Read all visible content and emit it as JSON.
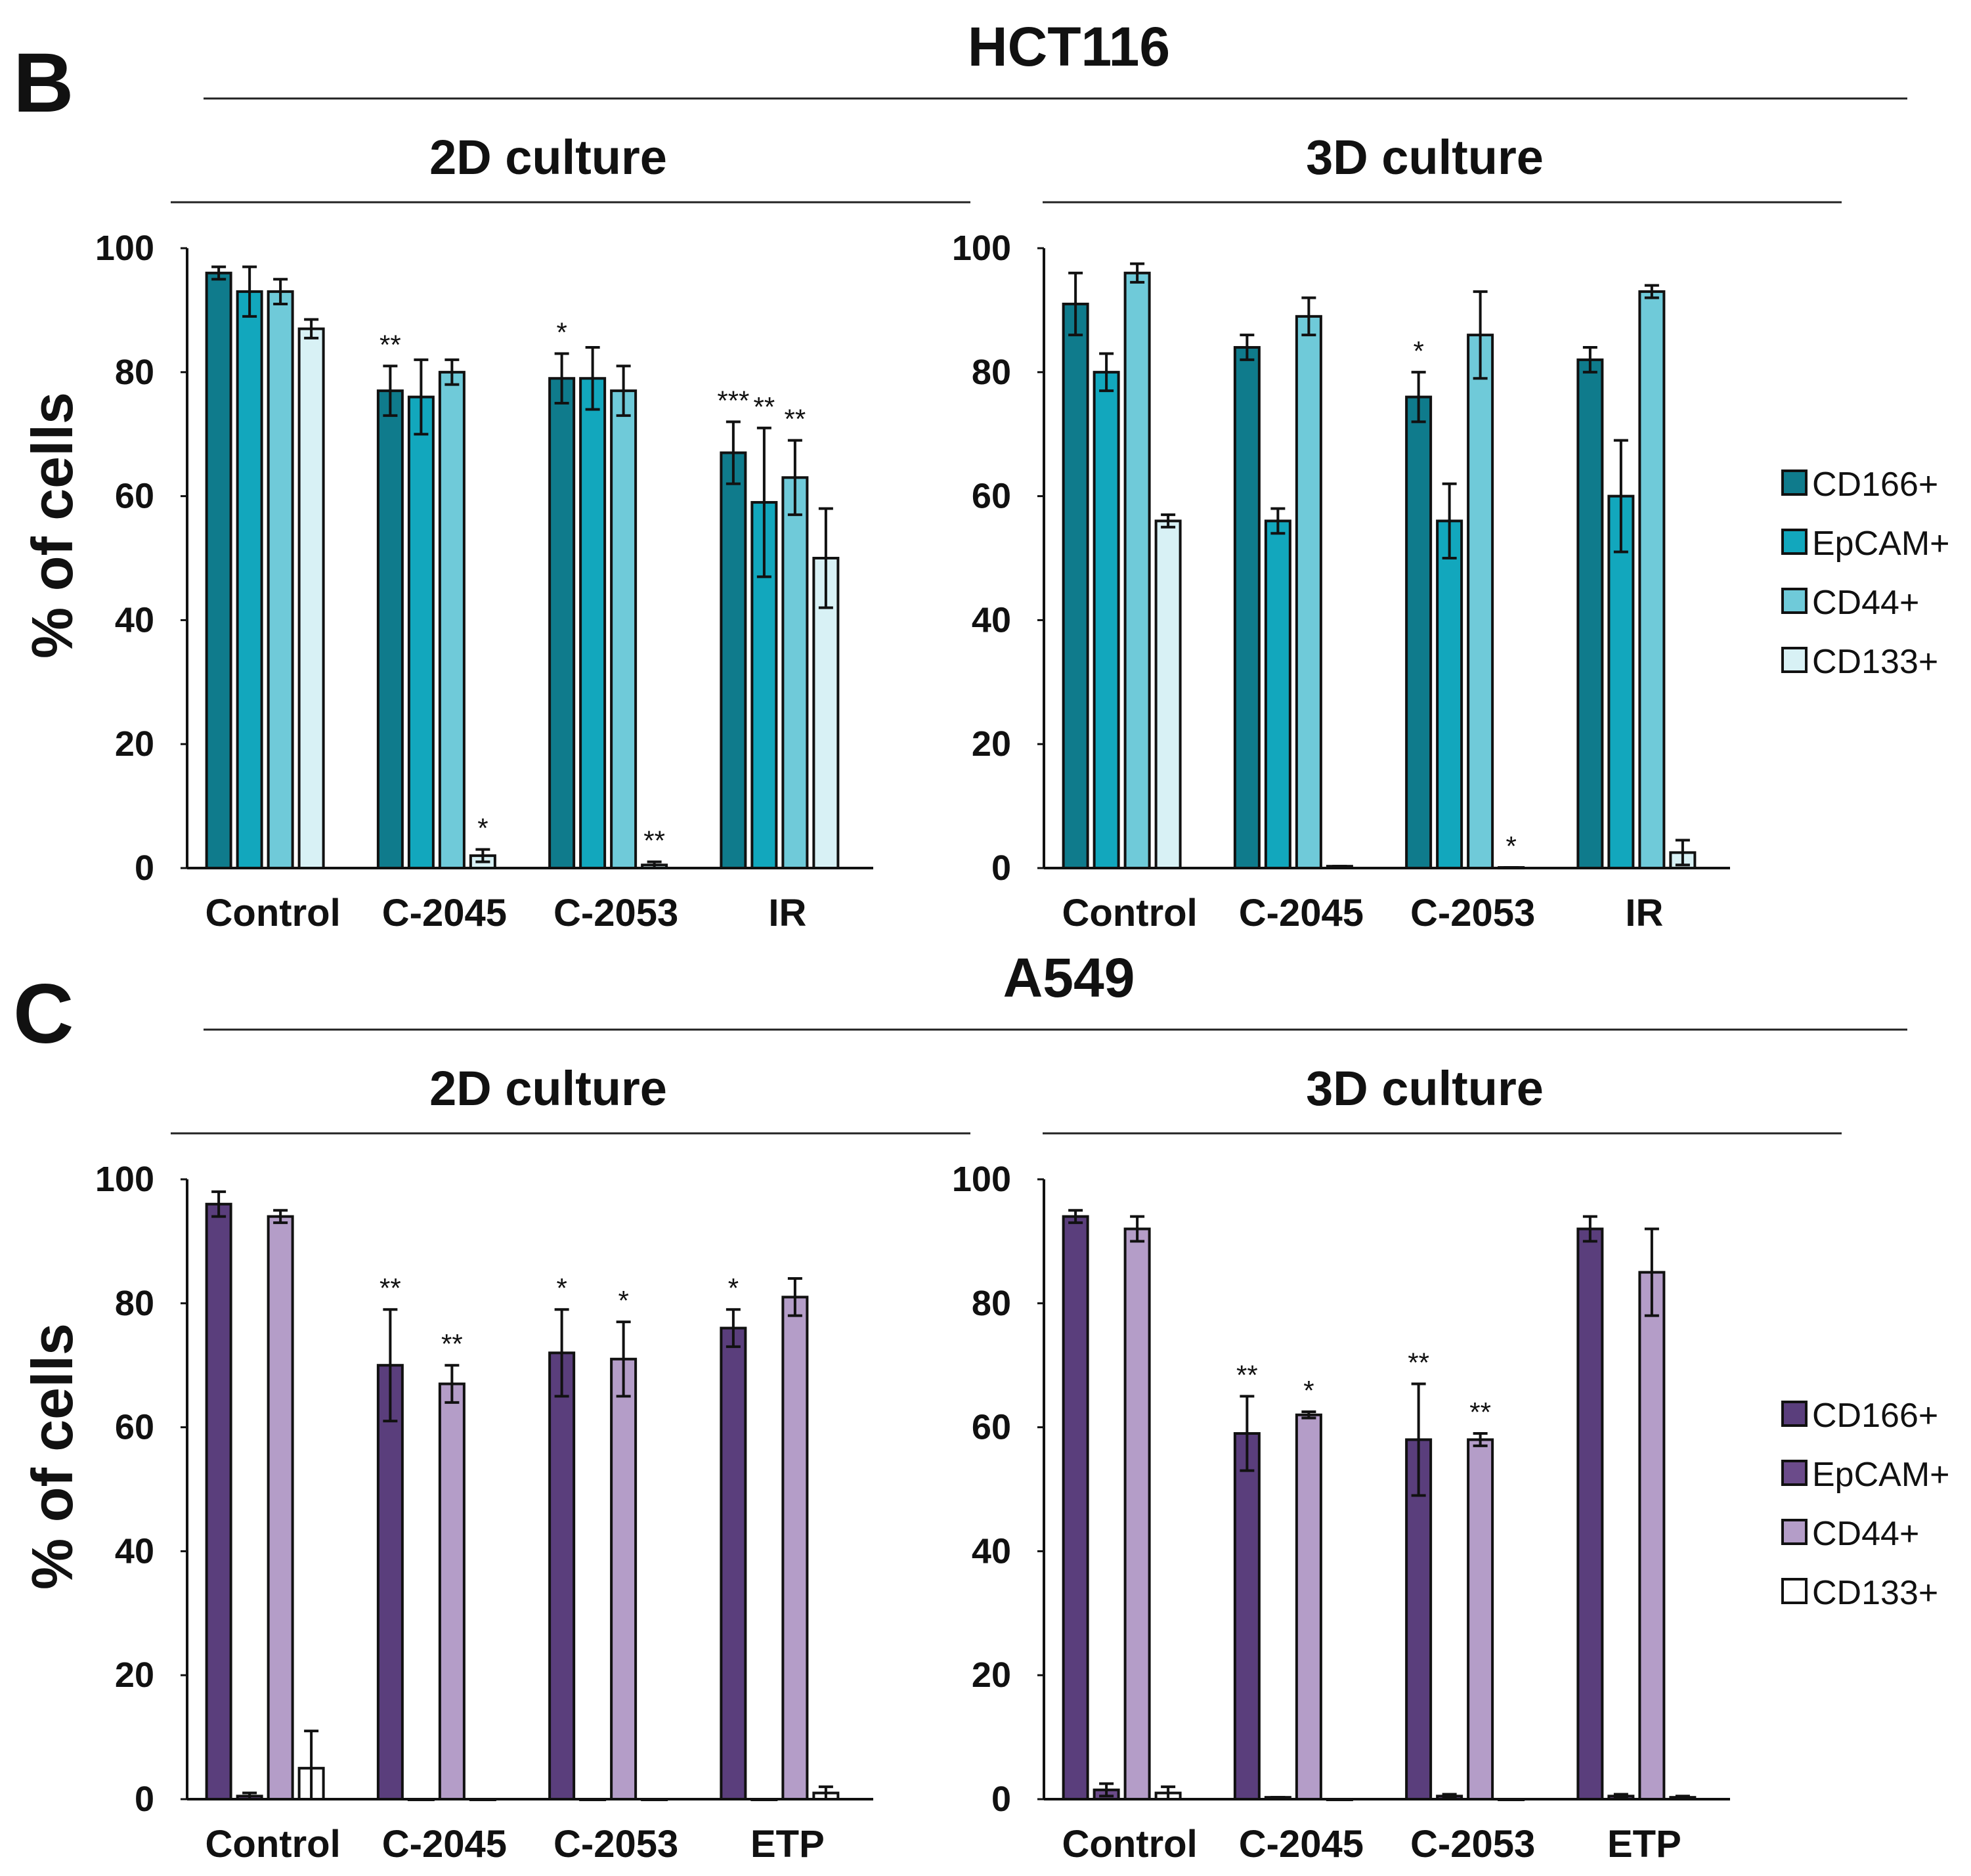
{
  "figure": {
    "panels": [
      {
        "letter": "B",
        "cell_line": "HCT116",
        "legend": [
          "CD166+",
          "EpCAM+",
          "CD44+",
          "CD133+"
        ],
        "colors": [
          "#0f7b8c",
          "#12a7bd",
          "#6fcad9",
          "#d8f1f5"
        ]
      },
      {
        "letter": "C",
        "cell_line": "A549",
        "legend": [
          "CD166+",
          "EpCAM+",
          "CD44+",
          "CD133+"
        ],
        "colors": [
          "#5a3e7c",
          "#6b4b8a",
          "#b49dc8",
          "#ffffff"
        ]
      }
    ]
  },
  "chart_data": [
    {
      "type": "bar",
      "panel": "B",
      "title": "2D culture",
      "ylabel": "% of cells",
      "ylim": [
        0,
        100
      ],
      "yticks": [
        0,
        20,
        40,
        60,
        80,
        100
      ],
      "categories": [
        "Control",
        "C-2045",
        "C-2053",
        "IR"
      ],
      "series": [
        {
          "name": "CD166+",
          "values": [
            96,
            77,
            79,
            67
          ],
          "errors": [
            1,
            4,
            4,
            5
          ],
          "sig": [
            "",
            "**",
            "*",
            "***"
          ]
        },
        {
          "name": "EpCAM+",
          "values": [
            93,
            76,
            79,
            59
          ],
          "errors": [
            4,
            6,
            5,
            12
          ],
          "sig": [
            "",
            "",
            "",
            "**"
          ]
        },
        {
          "name": "CD44+",
          "values": [
            93,
            80,
            77,
            63
          ],
          "errors": [
            2,
            2,
            4,
            6
          ],
          "sig": [
            "",
            "",
            "",
            "**"
          ]
        },
        {
          "name": "CD133+",
          "values": [
            87,
            2,
            0.5,
            50
          ],
          "errors": [
            1.5,
            1,
            0.5,
            8
          ],
          "sig": [
            "",
            "*",
            "**",
            ""
          ]
        }
      ]
    },
    {
      "type": "bar",
      "panel": "B",
      "title": "3D culture",
      "ylabel": "",
      "ylim": [
        0,
        100
      ],
      "yticks": [
        0,
        20,
        40,
        60,
        80,
        100
      ],
      "categories": [
        "Control",
        "C-2045",
        "C-2053",
        "IR"
      ],
      "series": [
        {
          "name": "CD166+",
          "values": [
            91,
            84,
            76,
            82
          ],
          "errors": [
            5,
            2,
            4,
            2
          ],
          "sig": [
            "",
            "",
            "*",
            ""
          ]
        },
        {
          "name": "EpCAM+",
          "values": [
            80,
            56,
            56,
            60
          ],
          "errors": [
            3,
            2,
            6,
            9
          ],
          "sig": [
            "",
            "",
            "",
            ""
          ]
        },
        {
          "name": "CD44+",
          "values": [
            96,
            89,
            86,
            93
          ],
          "errors": [
            1.5,
            3,
            7,
            1
          ],
          "sig": [
            "",
            "",
            "",
            ""
          ]
        },
        {
          "name": "CD133+",
          "values": [
            56,
            0.3,
            0.1,
            2.5
          ],
          "errors": [
            1,
            0,
            0,
            2
          ],
          "sig": [
            "",
            "",
            "*",
            ""
          ]
        }
      ]
    },
    {
      "type": "bar",
      "panel": "C",
      "title": "2D culture",
      "ylabel": "% of cells",
      "ylim": [
        0,
        100
      ],
      "yticks": [
        0,
        20,
        40,
        60,
        80,
        100
      ],
      "categories": [
        "Control",
        "C-2045",
        "C-2053",
        "ETP"
      ],
      "series": [
        {
          "name": "CD166+",
          "values": [
            96,
            70,
            72,
            76
          ],
          "errors": [
            2,
            9,
            7,
            3
          ],
          "sig": [
            "",
            "**",
            "*",
            "*"
          ]
        },
        {
          "name": "EpCAM+",
          "values": [
            0.5,
            0,
            0,
            0
          ],
          "errors": [
            0.5,
            0,
            0,
            0
          ],
          "sig": [
            "",
            "",
            "",
            ""
          ]
        },
        {
          "name": "CD44+",
          "values": [
            94,
            67,
            71,
            81
          ],
          "errors": [
            1,
            3,
            6,
            3
          ],
          "sig": [
            "",
            "**",
            "*",
            ""
          ]
        },
        {
          "name": "CD133+",
          "values": [
            5,
            0,
            0,
            1
          ],
          "errors": [
            6,
            0,
            0,
            1
          ],
          "sig": [
            "",
            "",
            "",
            ""
          ]
        }
      ]
    },
    {
      "type": "bar",
      "panel": "C",
      "title": "3D culture",
      "ylabel": "",
      "ylim": [
        0,
        100
      ],
      "yticks": [
        0,
        20,
        40,
        60,
        80,
        100
      ],
      "categories": [
        "Control",
        "C-2045",
        "C-2053",
        "ETP"
      ],
      "series": [
        {
          "name": "CD166+",
          "values": [
            94,
            59,
            58,
            92
          ],
          "errors": [
            1,
            6,
            9,
            2
          ],
          "sig": [
            "",
            "**",
            "**",
            ""
          ]
        },
        {
          "name": "EpCAM+",
          "values": [
            1.5,
            0.3,
            0.5,
            0.5
          ],
          "errors": [
            1,
            0,
            0.3,
            0.3
          ],
          "sig": [
            "",
            "",
            "",
            ""
          ]
        },
        {
          "name": "CD44+",
          "values": [
            92,
            62,
            58,
            85
          ],
          "errors": [
            2,
            0.5,
            1,
            7
          ],
          "sig": [
            "",
            "*",
            "**",
            ""
          ]
        },
        {
          "name": "CD133+",
          "values": [
            1,
            0,
            0,
            0.3
          ],
          "errors": [
            1,
            0,
            0,
            0.2
          ],
          "sig": [
            "",
            "",
            "",
            ""
          ]
        }
      ]
    }
  ]
}
